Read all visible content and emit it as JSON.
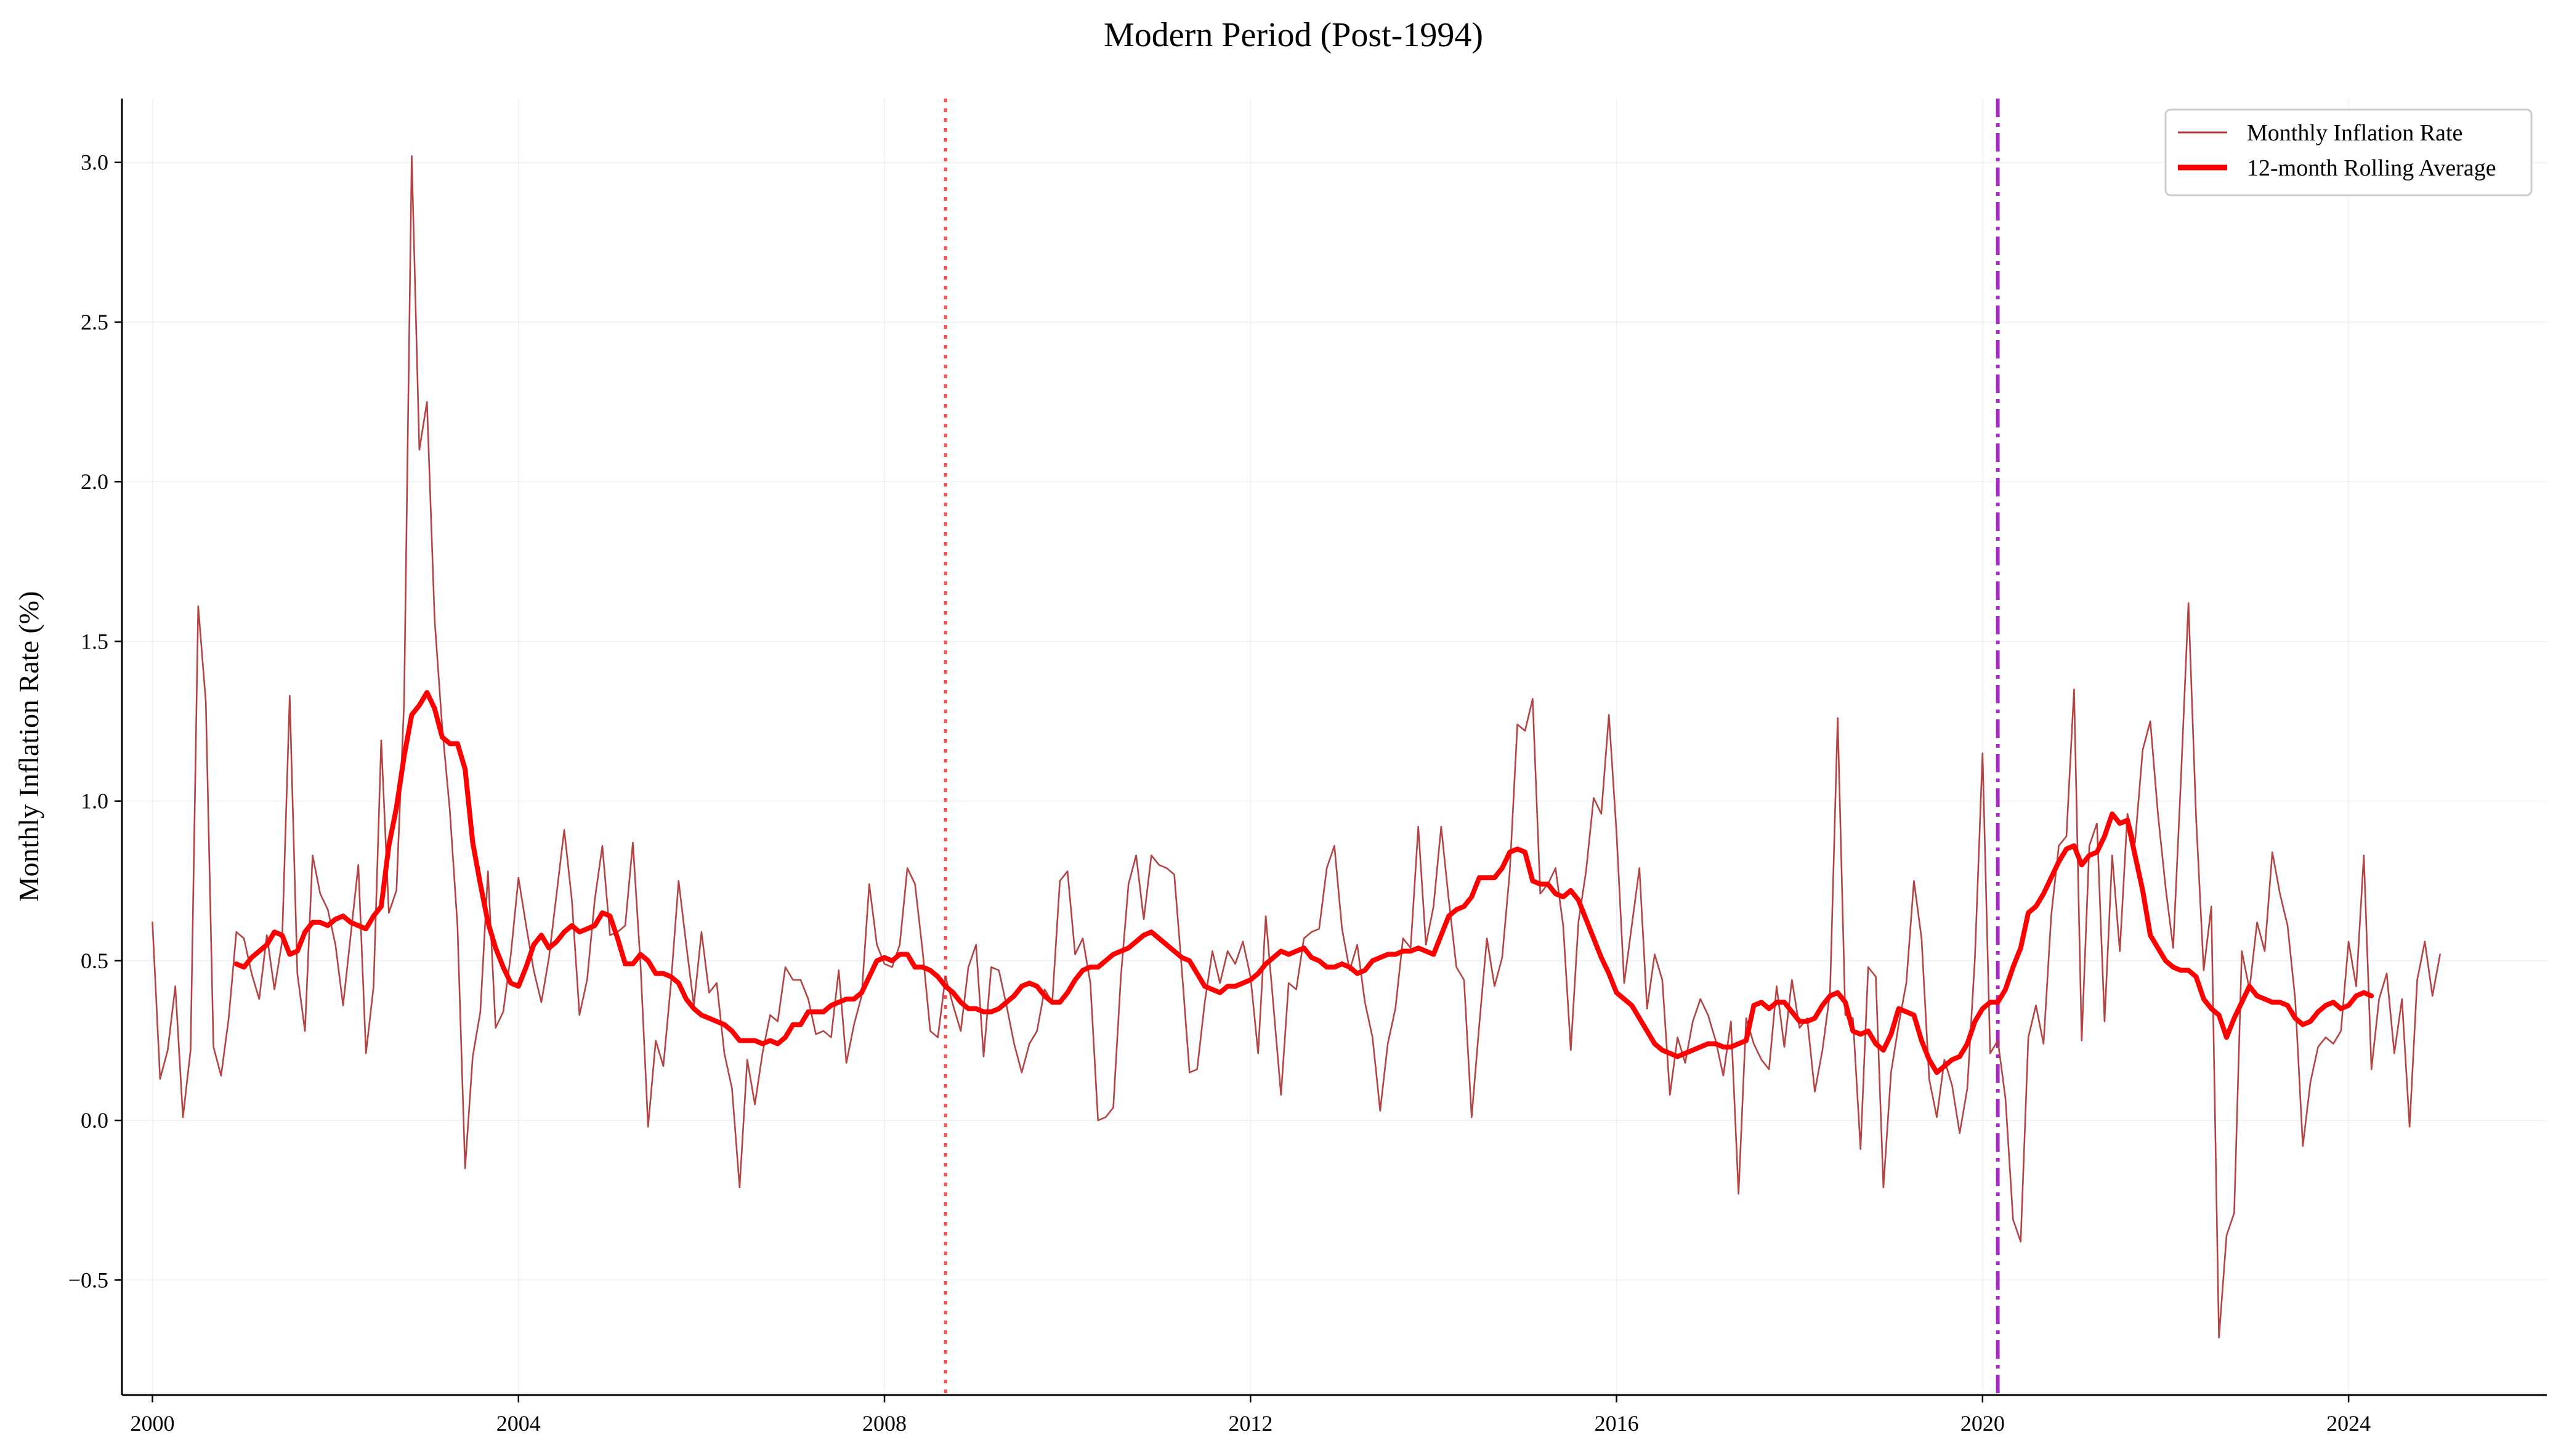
{
  "chart_data": {
    "type": "line",
    "title": "Modern Period (Post-1994)",
    "xlabel": "",
    "ylabel": "Monthly Inflation Rate (%)",
    "xlim": [
      "1999-09",
      "2026-03"
    ],
    "ylim": [
      -0.86,
      3.2
    ],
    "x_ticks": [
      "2000",
      "2004",
      "2008",
      "2012",
      "2016",
      "2020",
      "2024"
    ],
    "y_ticks": [
      "−0.5",
      "0.0",
      "0.5",
      "1.0",
      "1.5",
      "2.0",
      "2.5",
      "3.0"
    ],
    "grid": true,
    "legend_position": "top-right",
    "start_month": "2000-01",
    "series": [
      {
        "name": "Monthly Inflation Rate",
        "color": "#b03a3a",
        "values": [
          0.62,
          0.13,
          0.22,
          0.42,
          0.01,
          0.22,
          1.61,
          1.31,
          0.23,
          0.14,
          0.32,
          0.59,
          0.57,
          0.46,
          0.38,
          0.58,
          0.41,
          0.56,
          1.33,
          0.46,
          0.28,
          0.83,
          0.71,
          0.66,
          0.55,
          0.36,
          0.58,
          0.8,
          0.21,
          0.42,
          1.19,
          0.65,
          0.72,
          1.31,
          3.02,
          2.1,
          2.25,
          1.57,
          1.23,
          0.97,
          0.61,
          -0.15,
          0.2,
          0.34,
          0.78,
          0.29,
          0.34,
          0.52,
          0.76,
          0.61,
          0.47,
          0.37,
          0.51,
          0.71,
          0.91,
          0.69,
          0.33,
          0.44,
          0.69,
          0.86,
          0.58,
          0.59,
          0.61,
          0.87,
          0.49,
          -0.02,
          0.25,
          0.17,
          0.43,
          0.75,
          0.55,
          0.36,
          0.59,
          0.4,
          0.43,
          0.21,
          0.1,
          -0.21,
          0.19,
          0.05,
          0.21,
          0.33,
          0.31,
          0.48,
          0.44,
          0.44,
          0.38,
          0.27,
          0.28,
          0.26,
          0.47,
          0.18,
          0.3,
          0.39,
          0.74,
          0.55,
          0.49,
          0.48,
          0.55,
          0.79,
          0.74,
          0.53,
          0.28,
          0.26,
          0.45,
          0.36,
          0.28,
          0.48,
          0.55,
          0.2,
          0.48,
          0.47,
          0.36,
          0.24,
          0.15,
          0.24,
          0.28,
          0.41,
          0.37,
          0.75,
          0.78,
          0.52,
          0.57,
          0.43,
          0.0,
          0.01,
          0.04,
          0.45,
          0.74,
          0.83,
          0.63,
          0.83,
          0.8,
          0.79,
          0.77,
          0.47,
          0.15,
          0.16,
          0.37,
          0.53,
          0.43,
          0.53,
          0.49,
          0.56,
          0.45,
          0.21,
          0.64,
          0.36,
          0.08,
          0.43,
          0.41,
          0.57,
          0.59,
          0.6,
          0.79,
          0.86,
          0.6,
          0.47,
          0.55,
          0.37,
          0.26,
          0.03,
          0.24,
          0.35,
          0.57,
          0.54,
          0.92,
          0.55,
          0.67,
          0.92,
          0.69,
          0.48,
          0.44,
          0.01,
          0.3,
          0.57,
          0.42,
          0.51,
          0.78,
          1.24,
          1.22,
          1.32,
          0.71,
          0.74,
          0.79,
          0.61,
          0.22,
          0.62,
          0.78,
          1.01,
          0.96,
          1.27,
          0.9,
          0.43,
          0.61,
          0.79,
          0.35,
          0.52,
          0.44,
          0.08,
          0.26,
          0.18,
          0.31,
          0.38,
          0.33,
          0.25,
          0.14,
          0.31,
          -0.23,
          0.32,
          0.24,
          0.19,
          0.16,
          0.42,
          0.23,
          0.44,
          0.29,
          0.32,
          0.09,
          0.22,
          0.4,
          1.26,
          0.33,
          0.32,
          -0.09,
          0.48,
          0.45,
          -0.21,
          0.15,
          0.3,
          0.43,
          0.75,
          0.57,
          0.13,
          0.01,
          0.19,
          0.11,
          -0.04,
          0.1,
          0.51,
          1.15,
          0.21,
          0.25,
          0.07,
          -0.31,
          -0.38,
          0.26,
          0.36,
          0.24,
          0.64,
          0.86,
          0.89,
          1.35,
          0.25,
          0.86,
          0.93,
          0.31,
          0.83,
          0.53,
          0.96,
          0.87,
          1.16,
          1.25,
          0.96,
          0.73,
          0.54,
          1.06,
          1.62,
          0.95,
          0.47,
          0.67,
          -0.68,
          -0.36,
          -0.29,
          0.53,
          0.41,
          0.62,
          0.53,
          0.84,
          0.71,
          0.61,
          0.38,
          -0.08,
          0.12,
          0.23,
          0.26,
          0.24,
          0.28,
          0.56,
          0.42,
          0.83,
          0.16,
          0.38,
          0.46,
          0.21,
          0.38,
          -0.02,
          0.44,
          0.56,
          0.39,
          0.52
        ]
      },
      {
        "name": "12-month Rolling Average",
        "color": "#ff0000",
        "start_month": "2000-12",
        "values": [
          0.49,
          0.48,
          0.51,
          0.53,
          0.55,
          0.59,
          0.58,
          0.52,
          0.53,
          0.59,
          0.62,
          0.62,
          0.61,
          0.63,
          0.64,
          0.62,
          0.61,
          0.6,
          0.64,
          0.67,
          0.86,
          0.98,
          1.14,
          1.27,
          1.3,
          1.34,
          1.29,
          1.2,
          1.18,
          1.18,
          1.1,
          0.87,
          0.74,
          0.62,
          0.54,
          0.48,
          0.43,
          0.42,
          0.48,
          0.55,
          0.58,
          0.54,
          0.56,
          0.59,
          0.61,
          0.59,
          0.6,
          0.61,
          0.65,
          0.64,
          0.57,
          0.49,
          0.49,
          0.52,
          0.5,
          0.46,
          0.46,
          0.45,
          0.43,
          0.38,
          0.35,
          0.33,
          0.32,
          0.31,
          0.3,
          0.28,
          0.25,
          0.25,
          0.25,
          0.24,
          0.25,
          0.24,
          0.26,
          0.3,
          0.3,
          0.34,
          0.34,
          0.34,
          0.36,
          0.37,
          0.38,
          0.38,
          0.4,
          0.45,
          0.5,
          0.51,
          0.5,
          0.52,
          0.52,
          0.48,
          0.48,
          0.47,
          0.45,
          0.42,
          0.4,
          0.37,
          0.35,
          0.35,
          0.34,
          0.34,
          0.35,
          0.37,
          0.39,
          0.42,
          0.43,
          0.42,
          0.39,
          0.37,
          0.37,
          0.4,
          0.44,
          0.47,
          0.48,
          0.48,
          0.5,
          0.52,
          0.53,
          0.54,
          0.56,
          0.58,
          0.59,
          0.57,
          0.55,
          0.53,
          0.51,
          0.5,
          0.46,
          0.42,
          0.41,
          0.4,
          0.42,
          0.42,
          0.43,
          0.44,
          0.46,
          0.49,
          0.51,
          0.53,
          0.52,
          0.53,
          0.54,
          0.51,
          0.5,
          0.48,
          0.48,
          0.49,
          0.48,
          0.46,
          0.47,
          0.5,
          0.51,
          0.52,
          0.52,
          0.53,
          0.53,
          0.54,
          0.53,
          0.52,
          0.58,
          0.64,
          0.66,
          0.67,
          0.7,
          0.76,
          0.76,
          0.76,
          0.79,
          0.84,
          0.85,
          0.84,
          0.75,
          0.74,
          0.74,
          0.71,
          0.7,
          0.72,
          0.69,
          0.63,
          0.57,
          0.51,
          0.46,
          0.4,
          0.38,
          0.36,
          0.32,
          0.28,
          0.24,
          0.22,
          0.21,
          0.2,
          0.21,
          0.22,
          0.23,
          0.24,
          0.24,
          0.23,
          0.23,
          0.24,
          0.25,
          0.36,
          0.37,
          0.35,
          0.37,
          0.37,
          0.34,
          0.31,
          0.31,
          0.32,
          0.36,
          0.39,
          0.4,
          0.37,
          0.28,
          0.27,
          0.28,
          0.24,
          0.22,
          0.27,
          0.35,
          0.34,
          0.33,
          0.25,
          0.19,
          0.15,
          0.17,
          0.19,
          0.2,
          0.24,
          0.31,
          0.35,
          0.37,
          0.37,
          0.41,
          0.48,
          0.54,
          0.65,
          0.67,
          0.71,
          0.76,
          0.81,
          0.85,
          0.86,
          0.8,
          0.83,
          0.84,
          0.89,
          0.96,
          0.93,
          0.94,
          0.83,
          0.72,
          0.58,
          0.54,
          0.5,
          0.48,
          0.47,
          0.47,
          0.45,
          0.38,
          0.35,
          0.33,
          0.26,
          0.32,
          0.37,
          0.42,
          0.39,
          0.38,
          0.37,
          0.37,
          0.36,
          0.32,
          0.3,
          0.31,
          0.34,
          0.36,
          0.37,
          0.35,
          0.36,
          0.39,
          0.4,
          0.39
        ]
      }
    ],
    "reference_lines": [
      {
        "x": "2008-09",
        "style": "dotted",
        "color": "#ff4d4d"
      },
      {
        "x": "2020-03",
        "style": "dashdot",
        "color": "#a62bbf"
      }
    ]
  }
}
